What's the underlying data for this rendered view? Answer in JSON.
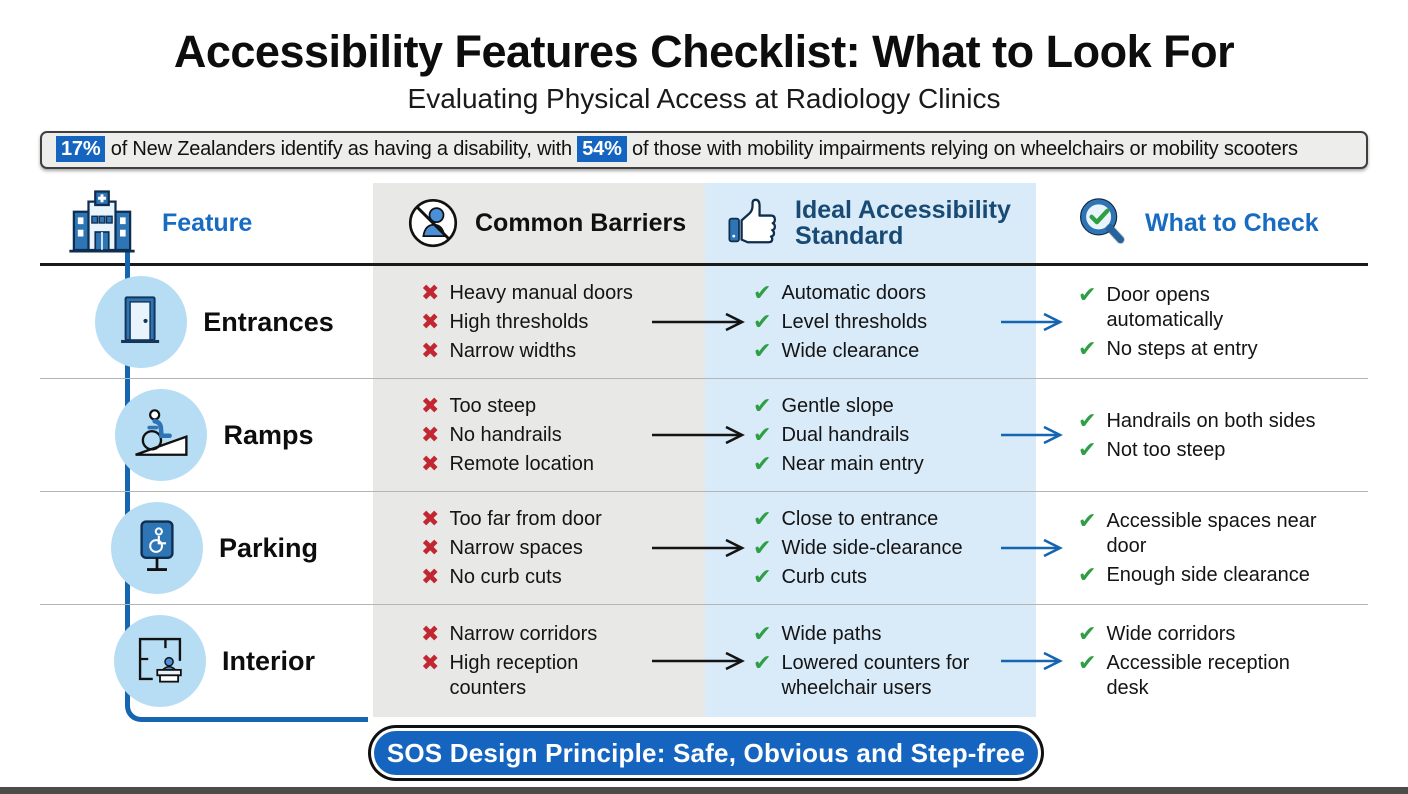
{
  "page": {
    "title": "Accessibility Features Checklist: What to Look For",
    "subtitle": "Evaluating Physical Access at Radiology Clinics"
  },
  "stat_banner": {
    "stat1": "17%",
    "text1": " of New Zealanders identify as having a disability, with ",
    "stat2": "54%",
    "text2": " of those with mobility impairments relying on wheelchairs or mobility scooters"
  },
  "table": {
    "headers": [
      {
        "label": "Feature",
        "icon": "hospital-icon"
      },
      {
        "label": "Common Barriers",
        "icon": "no-access-icon"
      },
      {
        "label": "Ideal Accessibility Standard",
        "icon": "thumbs-up-icon"
      },
      {
        "label": "What to Check",
        "icon": "magnifier-check-icon"
      }
    ],
    "rows": [
      {
        "feature": "Entrances",
        "icon": "door-icon",
        "barriers": [
          "Heavy manual doors",
          "High thresholds",
          "Narrow widths"
        ],
        "standards": [
          "Automatic doors",
          "Level thresholds",
          "Wide clearance"
        ],
        "checks": [
          "Door opens automatically",
          "No steps at entry"
        ]
      },
      {
        "feature": "Ramps",
        "icon": "ramp-icon",
        "barriers": [
          "Too steep",
          "No handrails",
          "Remote location"
        ],
        "standards": [
          "Gentle slope",
          "Dual handrails",
          "Near main entry"
        ],
        "checks": [
          "Handrails on both sides",
          "Not too steep"
        ]
      },
      {
        "feature": "Parking",
        "icon": "parking-icon",
        "barriers": [
          "Too far from door",
          "Narrow spaces",
          "No curb cuts"
        ],
        "standards": [
          "Close to entrance",
          "Wide side-clearance",
          "Curb cuts"
        ],
        "checks": [
          "Accessible spaces near door",
          "Enough side clearance"
        ]
      },
      {
        "feature": "Interior",
        "icon": "floorplan-icon",
        "barriers": [
          "Narrow corridors",
          "High reception counters"
        ],
        "standards": [
          "Wide paths",
          "Lowered counters for wheelchair users"
        ],
        "checks": [
          "Wide corridors",
          "Accessible reception desk"
        ]
      }
    ]
  },
  "footer": {
    "banner": "SOS Design Principle: Safe, Obvious and Step-free"
  },
  "icons": {
    "check_glyph": "✔",
    "cross_glyph": "✖"
  },
  "colors": {
    "accent_blue": "#1565c0",
    "header_link_blue": "#176cc1",
    "header_navy": "#184a73",
    "barrier_red": "#c22731",
    "check_green": "#2f9e44",
    "band_gray": "#e8e8e6",
    "band_blue": "#d9ebf9",
    "circle_blue": "#b7ddf4",
    "connector_blue": "#1565b0"
  }
}
